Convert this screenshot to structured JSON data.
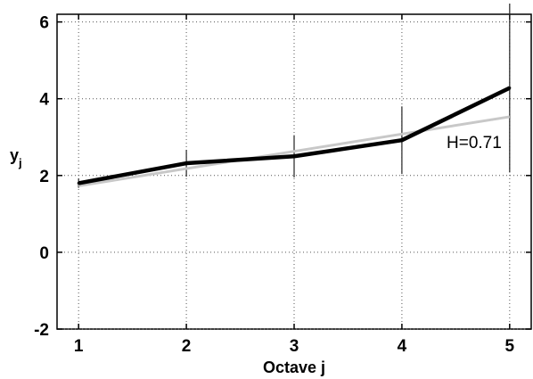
{
  "chart_data": {
    "type": "line",
    "title": "",
    "xlabel": "Octave j",
    "ylabel": "y",
    "ylabel_subscript": "j",
    "x": [
      1,
      2,
      3,
      4,
      5
    ],
    "xticks": [
      "1",
      "2",
      "3",
      "4",
      "5"
    ],
    "yticks": [
      "-2",
      "0",
      "2",
      "4",
      "6"
    ],
    "xlim": [
      0.8,
      5.2
    ],
    "ylim": [
      -2,
      6.2
    ],
    "grid": true,
    "series": [
      {
        "role": "estimate",
        "values": [
          1.8,
          2.32,
          2.5,
          2.92,
          4.28
        ],
        "errors": [
          0.12,
          0.35,
          0.55,
          0.88,
          2.2
        ],
        "color": "#000000"
      },
      {
        "role": "fit",
        "values": [
          1.73,
          2.18,
          2.63,
          3.08,
          3.53
        ],
        "color": "#c8c8c8"
      }
    ],
    "annotations": [
      {
        "text": "H=0.71",
        "x": 4.67,
        "y": 2.72
      }
    ]
  }
}
